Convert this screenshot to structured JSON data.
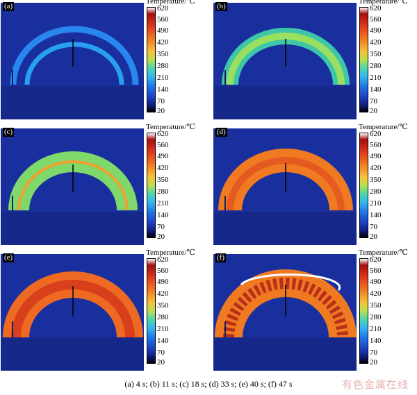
{
  "colorbar": {
    "title": "Temperature/℃",
    "ticks": [
      "620",
      "560",
      "490",
      "420",
      "350",
      "280",
      "210",
      "140",
      "70",
      "20"
    ]
  },
  "panels": [
    {
      "label": "(a)"
    },
    {
      "label": "(b)"
    },
    {
      "label": "(c)"
    },
    {
      "label": "(d)"
    },
    {
      "label": "(e)"
    },
    {
      "label": "(f)"
    }
  ],
  "caption": "(a) 4 s; (b) 11 s; (c) 18 s; (d)  33 s; (e) 40 s; (f) 47 s",
  "watermark": "有色金属在线",
  "colors": {
    "background": "#1a2f9e",
    "cold_ring": "#2f8ff0",
    "warm_ring": "#f0a030",
    "hot_ring": "#d8401c"
  }
}
